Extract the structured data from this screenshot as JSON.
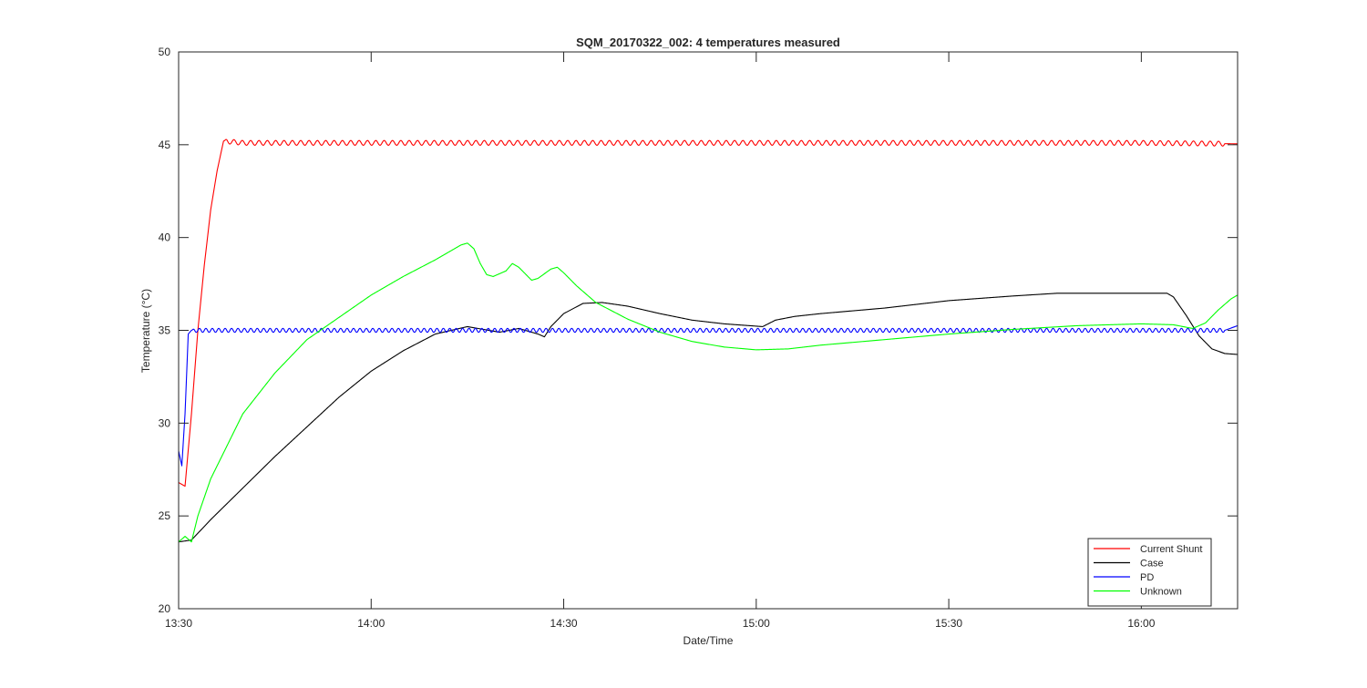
{
  "chart_data": {
    "type": "line",
    "title": "SQM_20170322_002: 4 temperatures measured",
    "xlabel": "Date/Time",
    "ylabel": "Temperature (°C)",
    "xlim": [
      "13:30",
      "16:15"
    ],
    "ylim": [
      20,
      50
    ],
    "xticks": [
      "13:30",
      "14:00",
      "14:30",
      "15:00",
      "15:30",
      "16:00"
    ],
    "yticks": [
      20,
      25,
      30,
      35,
      40,
      45,
      50
    ],
    "grid": false,
    "legend_position": "bottom-right",
    "series": [
      {
        "name": "Current Shunt",
        "color": "#ff0000",
        "oscillation": {
          "start": "13:37",
          "mean": 45.12,
          "amplitude": 0.13,
          "period_minutes": 1.3
        },
        "points": [
          [
            "13:30",
            26.8
          ],
          [
            "13:31",
            26.6
          ],
          [
            "13:32",
            30.5
          ],
          [
            "13:33",
            35.0
          ],
          [
            "13:34",
            38.5
          ],
          [
            "13:35",
            41.5
          ],
          [
            "13:36",
            43.6
          ],
          [
            "13:37",
            45.2
          ],
          [
            "13:40",
            45.1
          ],
          [
            "14:00",
            45.1
          ],
          [
            "14:30",
            45.1
          ],
          [
            "15:00",
            45.1
          ],
          [
            "15:30",
            45.1
          ],
          [
            "16:00",
            45.1
          ],
          [
            "16:15",
            45.05
          ]
        ]
      },
      {
        "name": "Case",
        "color": "#000000",
        "points": [
          [
            "13:30",
            23.6
          ],
          [
            "13:32",
            23.7
          ],
          [
            "13:35",
            24.8
          ],
          [
            "13:40",
            26.5
          ],
          [
            "13:45",
            28.2
          ],
          [
            "13:50",
            29.8
          ],
          [
            "13:55",
            31.4
          ],
          [
            "14:00",
            32.8
          ],
          [
            "14:05",
            33.9
          ],
          [
            "14:10",
            34.8
          ],
          [
            "14:15",
            35.2
          ],
          [
            "14:20",
            34.9
          ],
          [
            "14:23",
            35.1
          ],
          [
            "14:26",
            34.8
          ],
          [
            "14:27",
            34.65
          ],
          [
            "14:28",
            35.2
          ],
          [
            "14:30",
            35.9
          ],
          [
            "14:33",
            36.45
          ],
          [
            "14:36",
            36.5
          ],
          [
            "14:40",
            36.3
          ],
          [
            "14:45",
            35.9
          ],
          [
            "14:50",
            35.55
          ],
          [
            "14:55",
            35.35
          ],
          [
            "15:01",
            35.2
          ],
          [
            "15:03",
            35.55
          ],
          [
            "15:06",
            35.75
          ],
          [
            "15:10",
            35.9
          ],
          [
            "15:20",
            36.2
          ],
          [
            "15:30",
            36.6
          ],
          [
            "15:40",
            36.85
          ],
          [
            "15:47",
            37.0
          ],
          [
            "15:55",
            37.0
          ],
          [
            "16:04",
            37.0
          ],
          [
            "16:05",
            36.8
          ],
          [
            "16:07",
            35.8
          ],
          [
            "16:09",
            34.7
          ],
          [
            "16:11",
            34.0
          ],
          [
            "16:13",
            33.75
          ],
          [
            "16:15",
            33.7
          ]
        ]
      },
      {
        "name": "PD",
        "color": "#0000ff",
        "oscillation": {
          "start": "13:32",
          "mean": 35.0,
          "amplitude": 0.11,
          "period_minutes": 1.0
        },
        "points": [
          [
            "13:30",
            28.5
          ],
          [
            "13:30.5",
            27.7
          ],
          [
            "13:31",
            30.5
          ],
          [
            "13:31.5",
            34.8
          ],
          [
            "13:32",
            35.0
          ],
          [
            "14:30",
            35.0
          ],
          [
            "15:00",
            35.0
          ],
          [
            "15:30",
            35.0
          ],
          [
            "16:00",
            35.0
          ],
          [
            "16:13",
            35.0
          ],
          [
            "16:15",
            35.25
          ]
        ]
      },
      {
        "name": "Unknown",
        "color": "#00ff00",
        "points": [
          [
            "13:30",
            23.6
          ],
          [
            "13:31",
            23.9
          ],
          [
            "13:32",
            23.6
          ],
          [
            "13:33",
            25.0
          ],
          [
            "13:35",
            27.0
          ],
          [
            "13:40",
            30.5
          ],
          [
            "13:45",
            32.7
          ],
          [
            "13:50",
            34.5
          ],
          [
            "13:55",
            35.7
          ],
          [
            "14:00",
            36.9
          ],
          [
            "14:05",
            37.9
          ],
          [
            "14:10",
            38.8
          ],
          [
            "14:14",
            39.6
          ],
          [
            "14:15",
            39.7
          ],
          [
            "14:16",
            39.4
          ],
          [
            "14:17",
            38.6
          ],
          [
            "14:18",
            38.0
          ],
          [
            "14:19",
            37.9
          ],
          [
            "14:21",
            38.2
          ],
          [
            "14:22",
            38.6
          ],
          [
            "14:23",
            38.4
          ],
          [
            "14:25",
            37.7
          ],
          [
            "14:26",
            37.8
          ],
          [
            "14:28",
            38.3
          ],
          [
            "14:29",
            38.4
          ],
          [
            "14:30",
            38.1
          ],
          [
            "14:32",
            37.4
          ],
          [
            "14:35",
            36.5
          ],
          [
            "14:40",
            35.6
          ],
          [
            "14:45",
            34.9
          ],
          [
            "14:50",
            34.4
          ],
          [
            "14:55",
            34.1
          ],
          [
            "15:00",
            33.95
          ],
          [
            "15:05",
            34.0
          ],
          [
            "15:10",
            34.2
          ],
          [
            "15:20",
            34.5
          ],
          [
            "15:30",
            34.8
          ],
          [
            "15:40",
            35.05
          ],
          [
            "15:50",
            35.25
          ],
          [
            "16:00",
            35.35
          ],
          [
            "16:05",
            35.3
          ],
          [
            "16:08",
            35.1
          ],
          [
            "16:10",
            35.4
          ],
          [
            "16:12",
            36.1
          ],
          [
            "16:14",
            36.7
          ],
          [
            "16:15",
            36.9
          ]
        ]
      }
    ]
  }
}
